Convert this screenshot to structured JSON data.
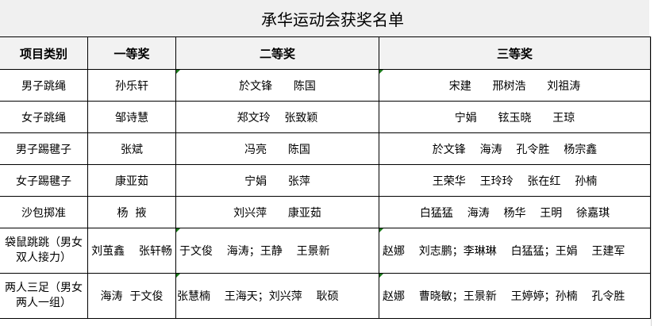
{
  "title": "承华运动会获奖名单",
  "headers": [
    "项目类别",
    "一等奖",
    "二等奖",
    "三等奖"
  ],
  "rows": [
    {
      "category": "男子跳绳",
      "first": "孙乐轩",
      "second": "於文锋      陈国",
      "third": "宋建      邢树浩      刘祖涛"
    },
    {
      "category": "女子跳绳",
      "first": "邹诗慧",
      "second": "郑文玲    张致颖",
      "third": "宁娟      铉玉晓      王琼"
    },
    {
      "category": "男子踢毽子",
      "first": "张斌",
      "second": "冯亮      陈国",
      "third": "於文锋    海涛    孔令胜    杨宗鑫"
    },
    {
      "category": "女子踢毽子",
      "first": "康亚茹",
      "second": "宁娟      张萍",
      "third": "王荣华    王玲玲    张在红    孙楠"
    },
    {
      "category": "沙包掷准",
      "first": "杨  掖",
      "second": "刘兴萍      康亚茹",
      "third": "白猛猛    海涛    杨华    王明    徐嘉琪"
    },
    {
      "category": "袋鼠跳跳（男女双人接力）",
      "first": "刘茧鑫    张轩畅",
      "second": "于文俊    海涛；王静    王景新",
      "third": "赵娜    刘志鹏；李琳琳    白猛猛；王娟    王建军"
    },
    {
      "category": "两人三足（男女两人一组）",
      "first": "海涛  于文俊",
      "second": "张慧楠    王海天；刘兴萍    耿硕",
      "third": "赵娜    曹晓敏；王景新    王婷婷；孙楠    孔令胜"
    }
  ],
  "colors": {
    "header_bg": "#f2f2f2",
    "title_bg": "#f0f0f0",
    "comment_flag": "#1b7a1b"
  }
}
